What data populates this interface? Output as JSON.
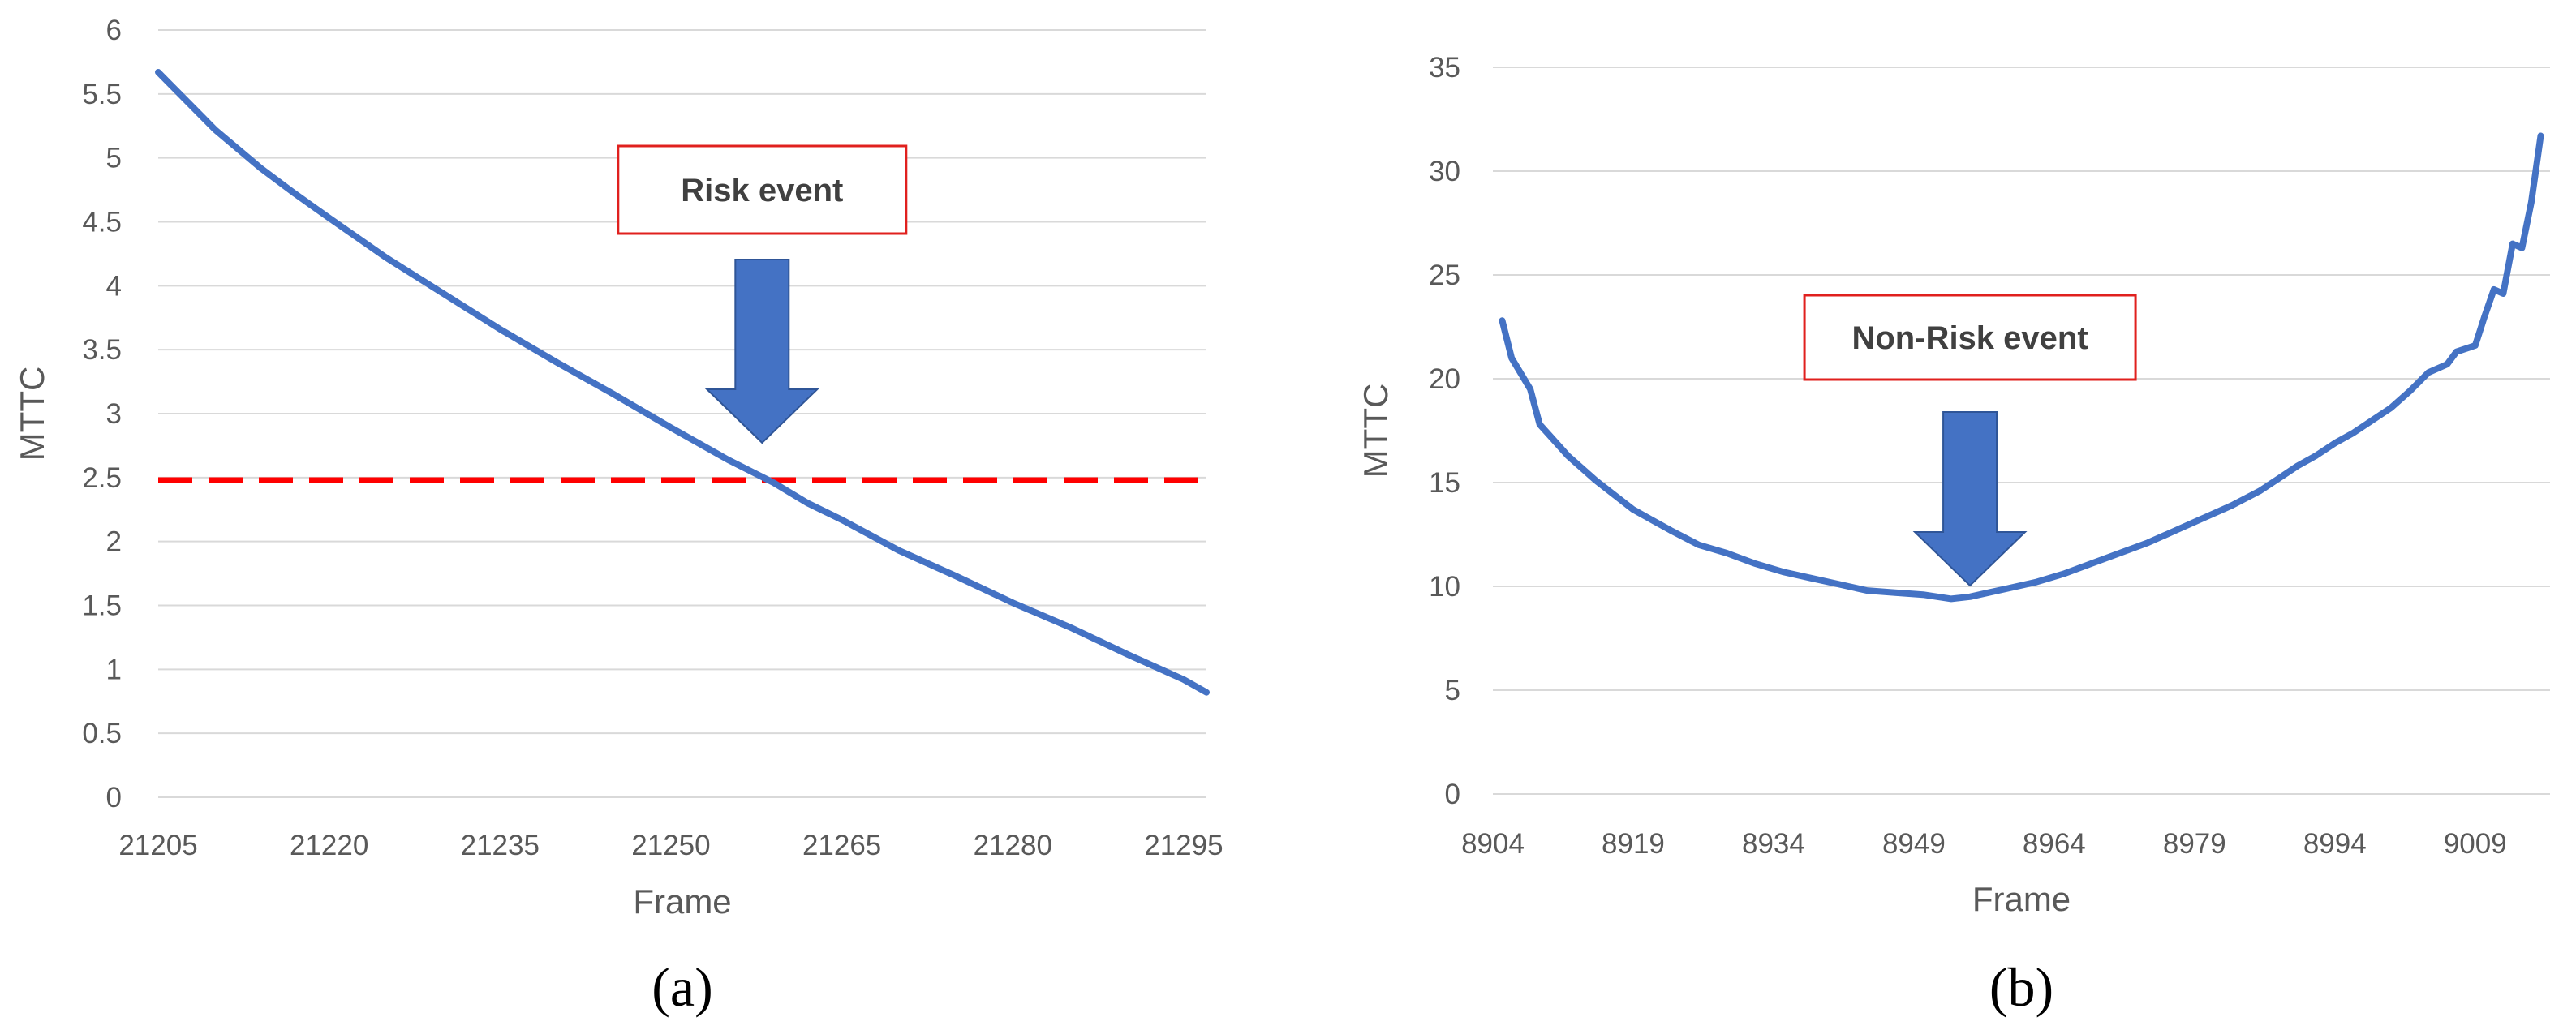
{
  "chart_data": [
    {
      "type": "line",
      "caption": "(a)",
      "xlabel": "Frame",
      "ylabel": "MTTC",
      "xlim": [
        21205,
        21297
      ],
      "ylim": [
        0,
        6
      ],
      "x_ticks": [
        21205,
        21220,
        21235,
        21250,
        21265,
        21280,
        21295
      ],
      "y_ticks": [
        0,
        0.5,
        1,
        1.5,
        2,
        2.5,
        3,
        3.5,
        4,
        4.5,
        5,
        5.5,
        6
      ],
      "grid": "horizontal",
      "line_color": "#4472C4",
      "series": [
        {
          "x": [
            21205,
            21210,
            21214,
            21217,
            21220,
            21225,
            21230,
            21235,
            21240,
            21245,
            21250,
            21255,
            21259,
            21262,
            21265,
            21270,
            21275,
            21280,
            21285,
            21290,
            21295,
            21297
          ],
          "values": [
            5.67,
            5.22,
            4.92,
            4.72,
            4.53,
            4.22,
            3.94,
            3.66,
            3.4,
            3.15,
            2.89,
            2.64,
            2.46,
            2.3,
            2.17,
            1.93,
            1.73,
            1.52,
            1.33,
            1.12,
            0.92,
            0.82
          ]
        }
      ],
      "threshold": {
        "value": 2.48,
        "color": "#FF0000",
        "style": "dashed"
      },
      "annotation": {
        "text": "Risk event",
        "arrow_x": 21258
      }
    },
    {
      "type": "line",
      "caption": "(b)",
      "xlabel": "Frame",
      "ylabel": "MTTC",
      "xlim": [
        8904,
        9017
      ],
      "ylim": [
        0,
        35
      ],
      "x_ticks": [
        8904,
        8919,
        8934,
        8949,
        8964,
        8979,
        8994,
        9009
      ],
      "y_ticks": [
        0,
        5,
        10,
        15,
        20,
        25,
        30,
        35
      ],
      "grid": "horizontal",
      "line_color": "#4472C4",
      "series": [
        {
          "x": [
            8905,
            8906,
            8908,
            8909,
            8910,
            8912,
            8913,
            8915,
            8917,
            8919,
            8921,
            8923,
            8926,
            8929,
            8932,
            8935,
            8938,
            8941,
            8944,
            8947,
            8950,
            8953,
            8955,
            8957,
            8959,
            8962,
            8965,
            8968,
            8971,
            8974,
            8977,
            8980,
            8983,
            8986,
            8988,
            8990,
            8992,
            8994,
            8996,
            8998,
            9000,
            9002,
            9004,
            9006,
            9007,
            9009,
            9010,
            9011,
            9012,
            9013,
            9014,
            9015,
            9016
          ],
          "values": [
            22.8,
            21.0,
            19.5,
            17.8,
            17.3,
            16.3,
            15.9,
            15.1,
            14.4,
            13.7,
            13.2,
            12.7,
            12.0,
            11.6,
            11.1,
            10.7,
            10.4,
            10.1,
            9.8,
            9.7,
            9.6,
            9.4,
            9.5,
            9.7,
            9.9,
            10.2,
            10.6,
            11.1,
            11.6,
            12.1,
            12.7,
            13.3,
            13.9,
            14.6,
            15.2,
            15.8,
            16.3,
            16.9,
            17.4,
            18.0,
            18.6,
            19.4,
            20.3,
            20.7,
            21.3,
            21.6,
            23.0,
            24.3,
            24.1,
            26.5,
            26.3,
            28.5,
            31.7
          ]
        }
      ],
      "annotation": {
        "text": "Non-Risk event",
        "arrow_x": 8955
      }
    }
  ]
}
